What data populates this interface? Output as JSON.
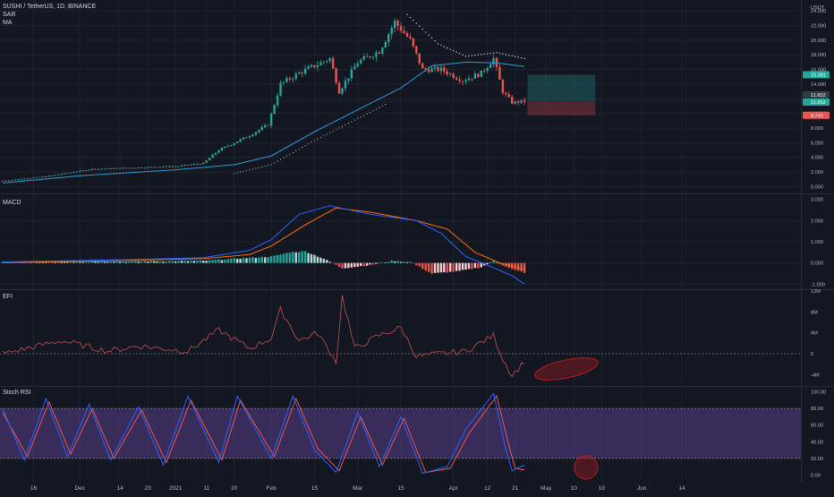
{
  "header": {
    "symbol_line": "SUSHI / TetherUS, 1D, BINANCE",
    "indicators": [
      "SAR",
      "MA"
    ]
  },
  "panes": {
    "macd_label": "MACD",
    "efi_label": "EFI",
    "stoch_label": "Stoch RSI"
  },
  "colors": {
    "background": "#131722",
    "bull": "#26a69a",
    "bear": "#ef5350",
    "ma": "#2e9bd6",
    "macd_line": "#2962ff",
    "signal_line": "#ff6d00",
    "efi_line": "#b34a4a",
    "stoch_k": "#2962ff",
    "stoch_d": "#ef5350",
    "stoch_band": "#7e57c2",
    "annotation": "#b71c1c"
  },
  "chart_data": [
    {
      "type": "candlestick",
      "pane": "price",
      "currency": "USDT",
      "y_ticks": [
        "0.000",
        "2.000",
        "4.000",
        "6.000",
        "8.000",
        "10.000",
        "12.000",
        "14.000",
        "16.000",
        "18.000",
        "20.000",
        "22.000",
        "24.000"
      ],
      "ylim": [
        -0.8,
        25.0
      ],
      "x_ticks": [
        "16",
        "Dec",
        "14",
        "23",
        "2021",
        "11",
        "20",
        "Feb",
        "15",
        "Mar",
        "15",
        "Apr",
        "12",
        "21",
        "May",
        "10",
        "19",
        "Jun",
        "14"
      ],
      "x_tick_dates": [
        "2020-11-16",
        "2020-12-01",
        "2020-12-14",
        "2020-12-23",
        "2021-01-01",
        "2021-01-11",
        "2021-01-20",
        "2021-02-01",
        "2021-02-15",
        "2021-03-01",
        "2021-03-15",
        "2021-04-01",
        "2021-04-12",
        "2021-04-21",
        "2021-05-01",
        "2021-05-10",
        "2021-05-19",
        "2021-06-01",
        "2021-06-14"
      ],
      "date_range": [
        "2020-11-06",
        "2021-04-24"
      ],
      "key_closes": [
        [
          "2020-11-06",
          0.8
        ],
        [
          "2020-11-20",
          1.4
        ],
        [
          "2020-12-05",
          2.4
        ],
        [
          "2020-12-20",
          2.6
        ],
        [
          "2021-01-02",
          2.8
        ],
        [
          "2021-01-10",
          3.2
        ],
        [
          "2021-01-15",
          5.0
        ],
        [
          "2021-01-25",
          7.0
        ],
        [
          "2021-01-31",
          8.5
        ],
        [
          "2021-02-04",
          14.0
        ],
        [
          "2021-02-10",
          15.5
        ],
        [
          "2021-02-20",
          17.5
        ],
        [
          "2021-02-23",
          13.0
        ],
        [
          "2021-03-01",
          17.0
        ],
        [
          "2021-03-08",
          18.5
        ],
        [
          "2021-03-13",
          22.5
        ],
        [
          "2021-03-18",
          20.0
        ],
        [
          "2021-03-22",
          16.0
        ],
        [
          "2021-03-28",
          16.0
        ],
        [
          "2021-04-04",
          14.5
        ],
        [
          "2021-04-10",
          15.5
        ],
        [
          "2021-04-14",
          17.5
        ],
        [
          "2021-04-17",
          13.0
        ],
        [
          "2021-04-20",
          11.5
        ],
        [
          "2021-04-24",
          11.65
        ]
      ],
      "ma_points": [
        [
          "2020-11-06",
          0.5
        ],
        [
          "2020-12-01",
          1.5
        ],
        [
          "2021-01-01",
          2.3
        ],
        [
          "2021-01-20",
          3.0
        ],
        [
          "2021-02-01",
          4.2
        ],
        [
          "2021-02-15",
          7.5
        ],
        [
          "2021-03-01",
          10.5
        ],
        [
          "2021-03-15",
          13.5
        ],
        [
          "2021-03-25",
          16.5
        ],
        [
          "2021-04-05",
          17.0
        ],
        [
          "2021-04-15",
          16.9
        ],
        [
          "2021-04-24",
          16.4
        ]
      ],
      "sar_points": [
        [
          "2021-03-17",
          23.5
        ],
        [
          "2021-03-22",
          21.5
        ],
        [
          "2021-03-27",
          19.5
        ],
        [
          "2021-04-05",
          17.8
        ],
        [
          "2021-04-15",
          18.3
        ],
        [
          "2021-04-24",
          17.5
        ]
      ],
      "position": {
        "entry": 11.652,
        "target": 15.281,
        "stop": 9.742,
        "x_start": "2021-04-25",
        "x_end": "2021-05-17",
        "labels": [
          "15.281",
          "11.652",
          "11.652",
          "9.742"
        ]
      }
    },
    {
      "type": "line",
      "pane": "macd",
      "y_ticks": [
        "-1.000",
        "0.000",
        "1.000",
        "2.000",
        "3.000"
      ],
      "ylim": [
        -1.2,
        3.2
      ],
      "series": [
        {
          "role": "macd",
          "points": [
            [
              "2020-11-06",
              0.05
            ],
            [
              "2020-12-15",
              0.15
            ],
            [
              "2021-01-10",
              0.25
            ],
            [
              "2021-01-25",
              0.6
            ],
            [
              "2021-02-01",
              1.1
            ],
            [
              "2021-02-10",
              2.3
            ],
            [
              "2021-02-20",
              2.7
            ],
            [
              "2021-03-05",
              2.3
            ],
            [
              "2021-03-20",
              2.0
            ],
            [
              "2021-03-28",
              1.4
            ],
            [
              "2021-04-05",
              0.3
            ],
            [
              "2021-04-12",
              -0.1
            ],
            [
              "2021-04-20",
              -0.6
            ],
            [
              "2021-04-24",
              -1.0
            ]
          ]
        },
        {
          "role": "signal",
          "points": [
            [
              "2020-11-06",
              0.02
            ],
            [
              "2020-12-15",
              0.12
            ],
            [
              "2021-01-10",
              0.2
            ],
            [
              "2021-01-25",
              0.4
            ],
            [
              "2021-02-01",
              0.8
            ],
            [
              "2021-02-12",
              1.8
            ],
            [
              "2021-02-22",
              2.6
            ],
            [
              "2021-03-05",
              2.4
            ],
            [
              "2021-03-20",
              2.0
            ],
            [
              "2021-03-30",
              1.6
            ],
            [
              "2021-04-08",
              0.5
            ],
            [
              "2021-04-16",
              0.0
            ],
            [
              "2021-04-24",
              -0.3
            ]
          ]
        }
      ],
      "histogram": [
        [
          "2021-01-20",
          0.2
        ],
        [
          "2021-02-01",
          0.3
        ],
        [
          "2021-02-07",
          0.5
        ],
        [
          "2021-02-12",
          0.55
        ],
        [
          "2021-02-18",
          0.2
        ],
        [
          "2021-02-24",
          -0.25
        ],
        [
          "2021-03-05",
          -0.1
        ],
        [
          "2021-03-12",
          0.1
        ],
        [
          "2021-03-18",
          0.05
        ],
        [
          "2021-03-25",
          -0.5
        ],
        [
          "2021-04-02",
          -0.4
        ],
        [
          "2021-04-10",
          -0.2
        ],
        [
          "2021-04-14",
          0.1
        ],
        [
          "2021-04-20",
          -0.3
        ],
        [
          "2021-04-24",
          -0.45
        ]
      ]
    },
    {
      "type": "line",
      "pane": "efi",
      "y_ticks": [
        "-4M",
        "0",
        "4M",
        "8M",
        "12M"
      ],
      "ylim": [
        -6,
        12
      ],
      "points": [
        [
          "2020-11-06",
          0
        ],
        [
          "2020-11-25",
          2.5
        ],
        [
          "2020-12-10",
          0.5
        ],
        [
          "2020-12-20",
          1.5
        ],
        [
          "2021-01-05",
          0.5
        ],
        [
          "2021-01-15",
          4.5
        ],
        [
          "2021-01-25",
          1.0
        ],
        [
          "2021-02-01",
          3.0
        ],
        [
          "2021-02-04",
          8.5
        ],
        [
          "2021-02-10",
          2.5
        ],
        [
          "2021-02-16",
          4.0
        ],
        [
          "2021-02-22",
          -1.5
        ],
        [
          "2021-02-24",
          11.0
        ],
        [
          "2021-02-28",
          1.0
        ],
        [
          "2021-03-08",
          3.5
        ],
        [
          "2021-03-15",
          5.0
        ],
        [
          "2021-03-20",
          -0.5
        ],
        [
          "2021-04-05",
          0.5
        ],
        [
          "2021-04-14",
          3.5
        ],
        [
          "2021-04-17",
          -1.0
        ],
        [
          "2021-04-20",
          -4.2
        ],
        [
          "2021-04-24",
          -1.5
        ]
      ]
    },
    {
      "type": "line",
      "pane": "stoch_rsi",
      "y_ticks": [
        "0.00",
        "20.00",
        "40.00",
        "60.00",
        "80.00",
        "100.00"
      ],
      "ylim": [
        -5,
        105
      ],
      "band": [
        20,
        80
      ],
      "series": [
        {
          "role": "k",
          "points": [
            [
              "2020-11-06",
              80
            ],
            [
              "2020-11-13",
              18
            ],
            [
              "2020-11-20",
              92
            ],
            [
              "2020-11-27",
              22
            ],
            [
              "2020-12-04",
              85
            ],
            [
              "2020-12-11",
              18
            ],
            [
              "2020-12-20",
              82
            ],
            [
              "2020-12-28",
              12
            ],
            [
              "2021-01-05",
              95
            ],
            [
              "2021-01-15",
              15
            ],
            [
              "2021-01-21",
              95
            ],
            [
              "2021-02-01",
              20
            ],
            [
              "2021-02-08",
              95
            ],
            [
              "2021-02-15",
              30
            ],
            [
              "2021-02-22",
              3
            ],
            [
              "2021-03-01",
              75
            ],
            [
              "2021-03-08",
              10
            ],
            [
              "2021-03-15",
              70
            ],
            [
              "2021-03-22",
              2
            ],
            [
              "2021-03-30",
              10
            ],
            [
              "2021-04-05",
              55
            ],
            [
              "2021-04-14",
              98
            ],
            [
              "2021-04-18",
              30
            ],
            [
              "2021-04-20",
              5
            ],
            [
              "2021-04-24",
              12
            ]
          ]
        },
        {
          "role": "d",
          "points": [
            [
              "2020-11-06",
              75
            ],
            [
              "2020-11-14",
              22
            ],
            [
              "2020-11-21",
              88
            ],
            [
              "2020-11-28",
              25
            ],
            [
              "2020-12-05",
              80
            ],
            [
              "2020-12-12",
              20
            ],
            [
              "2020-12-21",
              78
            ],
            [
              "2020-12-29",
              15
            ],
            [
              "2021-01-06",
              90
            ],
            [
              "2021-01-16",
              18
            ],
            [
              "2021-01-22",
              90
            ],
            [
              "2021-02-02",
              22
            ],
            [
              "2021-02-09",
              92
            ],
            [
              "2021-02-16",
              32
            ],
            [
              "2021-02-23",
              5
            ],
            [
              "2021-03-02",
              70
            ],
            [
              "2021-03-09",
              12
            ],
            [
              "2021-03-16",
              68
            ],
            [
              "2021-03-23",
              3
            ],
            [
              "2021-03-31",
              8
            ],
            [
              "2021-04-06",
              50
            ],
            [
              "2021-04-15",
              95
            ],
            [
              "2021-04-19",
              35
            ],
            [
              "2021-04-21",
              8
            ],
            [
              "2021-04-24",
              6
            ]
          ]
        }
      ]
    }
  ]
}
